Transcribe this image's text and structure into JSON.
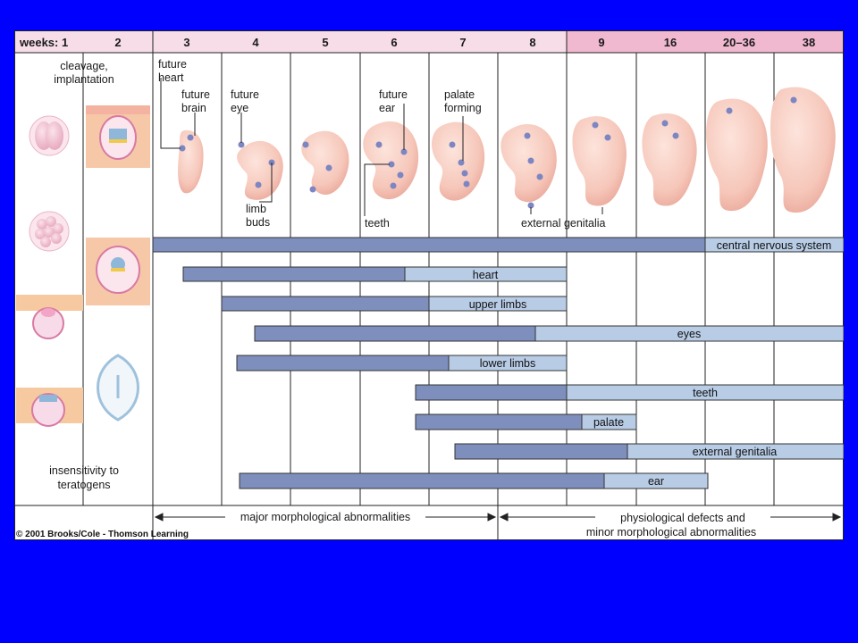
{
  "header": {
    "weeks_label": "weeks: 1",
    "weeks": [
      "2",
      "3",
      "4",
      "5",
      "6",
      "7",
      "8",
      "9",
      "16",
      "20–36",
      "38"
    ]
  },
  "stage_labels": {
    "cleavage": [
      "cleavage,",
      "implantation"
    ],
    "insensitivity": [
      "insensitivity to",
      "teratogens"
    ]
  },
  "embryo_labels": {
    "future_heart": [
      "future",
      "heart"
    ],
    "future_brain": [
      "future",
      "brain"
    ],
    "future_eye": [
      "future",
      "eye"
    ],
    "limb_buds": [
      "limb",
      "buds"
    ],
    "future_ear": [
      "future",
      "ear"
    ],
    "palate_forming": [
      "palate",
      "forming"
    ],
    "teeth": "teeth",
    "external_genitalia": "external genitalia"
  },
  "bars": [
    {
      "label": "central nervous system"
    },
    {
      "label": "heart"
    },
    {
      "label": "upper limbs"
    },
    {
      "label": "eyes"
    },
    {
      "label": "lower limbs"
    },
    {
      "label": "teeth"
    },
    {
      "label": "palate"
    },
    {
      "label": "external genitalia"
    },
    {
      "label": "ear"
    }
  ],
  "footer": {
    "major": "major morphological abnormalities",
    "physio": [
      "physiological defects and",
      "minor morphological abnormalities"
    ],
    "copyright": "© 2001 Brooks/Cole - Thomson Learning"
  },
  "colors": {
    "background": "#0000ff",
    "header_light": "#f6dde8",
    "header_dark": "#f0b9d0",
    "bar_sensitive": "#7f8fbd",
    "bar_less_sensitive": "#b8cce6",
    "embryo_skin": "#f8cfc4",
    "marker": "#7d86c2"
  }
}
